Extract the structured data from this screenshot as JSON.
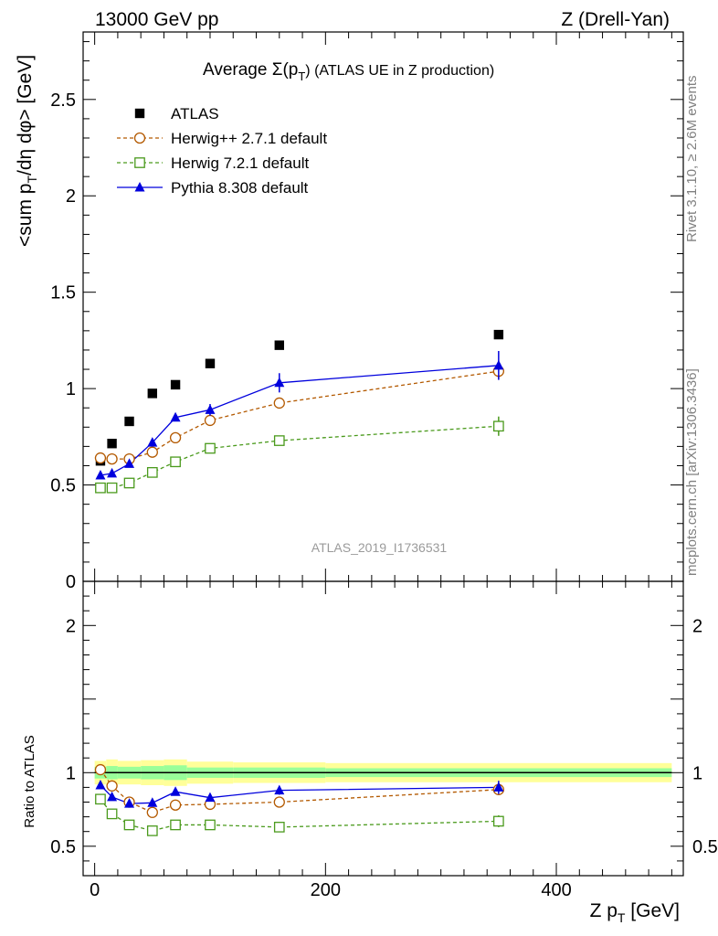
{
  "header": {
    "left": "13000 GeV pp",
    "right": "Z (Drell-Yan)"
  },
  "side_labels": {
    "rivet": "Rivet 3.1.10, ≥ 2.6M events",
    "mcplots": "mcplots.cern.ch [arXiv:1306.3436]"
  },
  "watermark": "ATLAS_2019_I1736531",
  "chart_data": [
    {
      "type": "scatter",
      "title_parts": {
        "main": "Average Σ(p",
        "sub": "T",
        "end": ") (ATLAS UE in Z production)"
      },
      "ylabel_parts": {
        "a": "<sum p",
        "sub": "T",
        "b": "/dη dφ> [GeV]"
      },
      "xlim": [
        -10,
        510
      ],
      "ylim": [
        0,
        2.85
      ],
      "yticks": [
        {
          "v": 0,
          "label": "0"
        },
        {
          "v": 0.5,
          "label": "0.5"
        },
        {
          "v": 1,
          "label": "1"
        },
        {
          "v": 1.5,
          "label": "1.5"
        },
        {
          "v": 2,
          "label": "2"
        },
        {
          "v": 2.5,
          "label": "2.5"
        }
      ],
      "series": [
        {
          "name": "ATLAS",
          "marker": "square-filled",
          "color": "#000000",
          "line": "none",
          "x": [
            5,
            15,
            30,
            50,
            70,
            100,
            160,
            350
          ],
          "y": [
            0.625,
            0.715,
            0.83,
            0.975,
            1.02,
            1.13,
            1.225,
            1.28
          ],
          "err": [
            0,
            0,
            0,
            0,
            0,
            0,
            0,
            0
          ]
        },
        {
          "name": "Herwig++ 2.7.1 default",
          "marker": "circle-open",
          "color": "#b35900",
          "line": "dashed",
          "x": [
            5,
            15,
            30,
            50,
            70,
            100,
            160,
            350
          ],
          "y": [
            0.64,
            0.635,
            0.635,
            0.67,
            0.745,
            0.835,
            0.925,
            1.09
          ],
          "err": [
            0,
            0,
            0,
            0.015,
            0.01,
            0.01,
            0.015,
            0.04
          ]
        },
        {
          "name": "Herwig 7.2.1 default",
          "marker": "square-open",
          "color": "#4a9a1c",
          "line": "dashed",
          "x": [
            5,
            15,
            30,
            50,
            70,
            100,
            160,
            350
          ],
          "y": [
            0.485,
            0.485,
            0.51,
            0.565,
            0.62,
            0.69,
            0.73,
            0.805
          ],
          "err": [
            0,
            0,
            0.01,
            0.01,
            0.01,
            0.01,
            0.015,
            0.05
          ]
        },
        {
          "name": "Pythia 8.308 default",
          "marker": "triangle-filled",
          "color": "#0000dd",
          "line": "solid",
          "x": [
            5,
            15,
            30,
            50,
            70,
            100,
            160,
            350
          ],
          "y": [
            0.55,
            0.56,
            0.61,
            0.72,
            0.85,
            0.89,
            1.03,
            1.12
          ],
          "err": [
            0.01,
            0.01,
            0.01,
            0.02,
            0.02,
            0.03,
            0.05,
            0.075
          ]
        }
      ]
    },
    {
      "type": "scatter",
      "ylabel": "Ratio to ATLAS",
      "xlabel_parts": {
        "a": "Z p",
        "sub": "T",
        "b": " [GeV]"
      },
      "xlim": [
        -10,
        510
      ],
      "ylim": [
        0.3,
        2.3
      ],
      "xticks": [
        {
          "v": 0,
          "label": "0"
        },
        {
          "v": 200,
          "label": "200"
        },
        {
          "v": 400,
          "label": "400"
        }
      ],
      "yticks": [
        {
          "v": 0.5,
          "label": "0.5"
        },
        {
          "v": 1,
          "label": "1"
        },
        {
          "v": 2,
          "label": "2"
        }
      ],
      "reference_line": 1,
      "bands": [
        {
          "x0": 0,
          "x1": 10,
          "y_low": 0.92,
          "y_high": 1.08,
          "g_low": 0.96,
          "g_high": 1.04
        },
        {
          "x0": 10,
          "x1": 20,
          "y_low": 0.91,
          "y_high": 1.09,
          "g_low": 0.955,
          "g_high": 1.045
        },
        {
          "x0": 20,
          "x1": 40,
          "y_low": 0.92,
          "y_high": 1.08,
          "g_low": 0.96,
          "g_high": 1.04
        },
        {
          "x0": 40,
          "x1": 60,
          "y_low": 0.915,
          "y_high": 1.085,
          "g_low": 0.955,
          "g_high": 1.045
        },
        {
          "x0": 60,
          "x1": 80,
          "y_low": 0.91,
          "y_high": 1.09,
          "g_low": 0.95,
          "g_high": 1.05
        },
        {
          "x0": 80,
          "x1": 120,
          "y_low": 0.925,
          "y_high": 1.075,
          "g_low": 0.965,
          "g_high": 1.035
        },
        {
          "x0": 120,
          "x1": 200,
          "y_low": 0.93,
          "y_high": 1.07,
          "g_low": 0.965,
          "g_high": 1.035
        },
        {
          "x0": 200,
          "x1": 500,
          "y_low": 0.935,
          "y_high": 1.065,
          "g_low": 0.97,
          "g_high": 1.03
        }
      ],
      "series": [
        {
          "name": "Herwig++ 2.7.1 default",
          "marker": "circle-open",
          "color": "#b35900",
          "line": "dashed",
          "x": [
            5,
            15,
            30,
            50,
            70,
            100,
            160,
            350
          ],
          "y": [
            1.02,
            0.91,
            0.8,
            0.73,
            0.78,
            0.785,
            0.8,
            0.885
          ],
          "err": [
            0,
            0,
            0,
            0.01,
            0.01,
            0.01,
            0.01,
            0.03
          ]
        },
        {
          "name": "Herwig 7.2.1 default",
          "marker": "square-open",
          "color": "#4a9a1c",
          "line": "dashed",
          "x": [
            5,
            15,
            30,
            50,
            70,
            100,
            160,
            350
          ],
          "y": [
            0.82,
            0.72,
            0.645,
            0.605,
            0.645,
            0.645,
            0.63,
            0.67
          ],
          "err": [
            0,
            0,
            0,
            0.01,
            0.01,
            0.01,
            0.01,
            0.04
          ]
        },
        {
          "name": "Pythia 8.308 default",
          "marker": "triangle-filled",
          "color": "#0000dd",
          "line": "solid",
          "x": [
            5,
            15,
            30,
            50,
            70,
            100,
            160,
            350
          ],
          "y": [
            0.915,
            0.835,
            0.79,
            0.795,
            0.87,
            0.83,
            0.88,
            0.9
          ],
          "err": [
            0.01,
            0.01,
            0.01,
            0.01,
            0.02,
            0.02,
            0.03,
            0.045
          ]
        }
      ]
    }
  ]
}
